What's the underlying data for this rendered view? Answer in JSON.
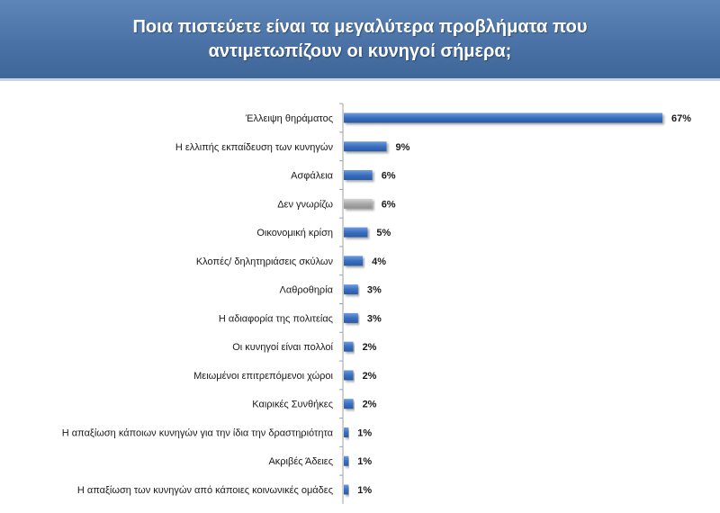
{
  "header": {
    "title": "Ποια πιστεύετε είναι τα μεγαλύτερα προβλήματα που αντιμετωπίζουν οι κυνηγοί σήμερα;"
  },
  "colors": {
    "header_bg": "#4a72a6",
    "bar_blue": "#3a6fbf",
    "bar_grey": "#a9a9a9",
    "axis": "#a0a0a0"
  },
  "chart_data": {
    "type": "bar",
    "orientation": "horizontal",
    "title": "Ποια πιστεύετε είναι τα μεγαλύτερα προβλήματα που αντιμετωπίζουν οι κυνηγοί σήμερα;",
    "xlabel": "",
    "ylabel": "",
    "xlim": [
      0,
      67
    ],
    "grid": false,
    "legend": "none",
    "categories": [
      "Έλλειψη θηράματος",
      "Η ελλιπής εκπαίδευση των κυνηγών",
      "Ασφάλεια",
      "Δεν γνωρίζω",
      "Οικονομική κρίση",
      "Κλοπές/ δηλητηριάσεις σκύλων",
      "Λαθροθηρία",
      "Η αδιαφορία της πολιτείας",
      "Οι κυνηγοί είναι πολλοί",
      "Μειωμένοι επιτρεπόμενοι χώροι",
      "Καιρικές Συνθήκες",
      "Η απαξίωση κάποιων κυνηγών για την ίδια την δραστηριότητα",
      "Ακριβές Άδειες",
      "Η απαξίωση των κυνηγών από κάποιες κοινωνικές ομάδες"
    ],
    "values": [
      67,
      9,
      6,
      6,
      5,
      4,
      3,
      3,
      2,
      2,
      2,
      1,
      1,
      1
    ],
    "labels": [
      "67%",
      "9%",
      "6%",
      "6%",
      "5%",
      "4%",
      "3%",
      "3%",
      "2%",
      "2%",
      "2%",
      "1%",
      "1%",
      "1%"
    ],
    "bar_colors": [
      "blue",
      "blue",
      "blue",
      "grey",
      "blue",
      "blue",
      "blue",
      "blue",
      "blue",
      "blue",
      "blue",
      "blue",
      "blue",
      "blue"
    ]
  }
}
